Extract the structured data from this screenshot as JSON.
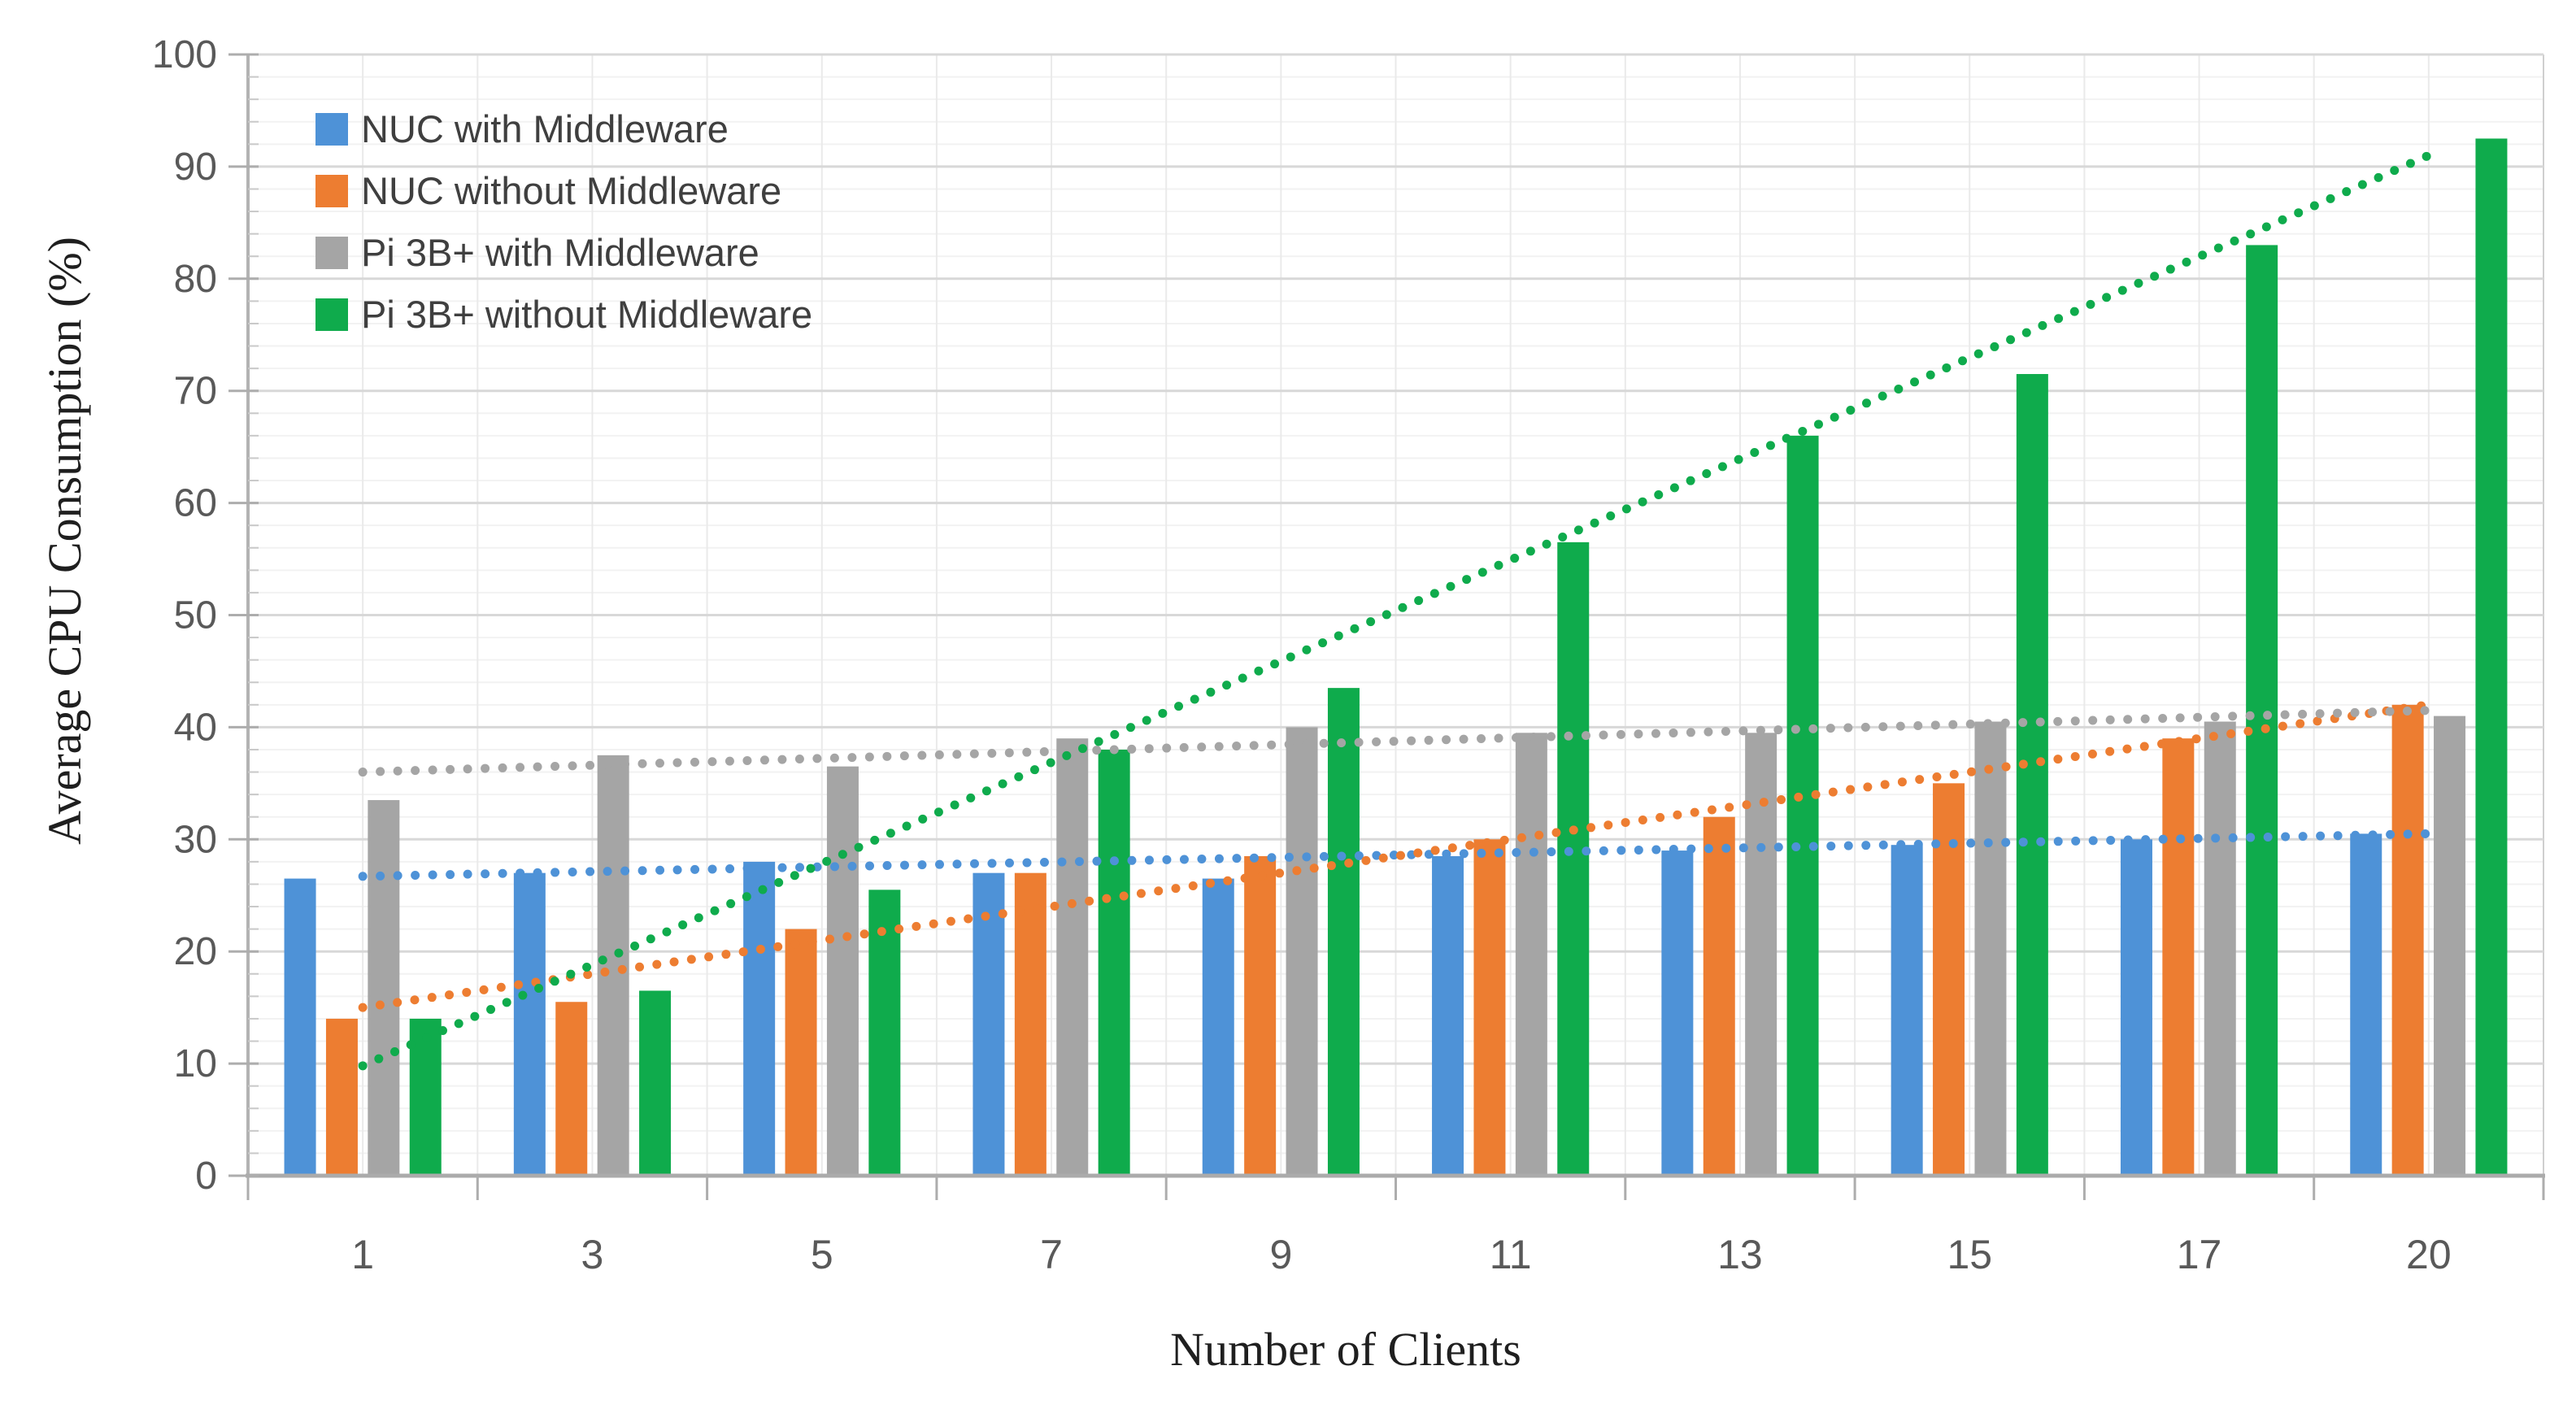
{
  "figure": {
    "y_axis_title": "Average CPU Consumption (%)",
    "x_axis_title": "Number of Clients"
  },
  "chart_data": {
    "type": "bar",
    "title": "",
    "xlabel": "Number of Clients",
    "ylabel": "Average CPU Consumption (%)",
    "categories": [
      "1",
      "3",
      "5",
      "7",
      "9",
      "11",
      "13",
      "15",
      "17",
      "20"
    ],
    "ylim": [
      0,
      100
    ],
    "y_major_step": 10,
    "y_minor_step": 2,
    "grid": true,
    "legend_position": "top-left-inside",
    "series": [
      {
        "name": "NUC with Middleware",
        "color": "#4E92D7",
        "values": [
          26.5,
          27,
          28,
          27,
          26.5,
          28.5,
          29,
          29.5,
          30,
          30.5
        ],
        "trendline": {
          "style": "dotted",
          "start": 26.7,
          "end": 30.5
        }
      },
      {
        "name": "NUC without Middleware",
        "color": "#ED7D31",
        "values": [
          14,
          15.5,
          22,
          27,
          28.5,
          30,
          32,
          35,
          39,
          42
        ],
        "trendline": {
          "style": "dotted",
          "start": 15.0,
          "end": 42.0
        }
      },
      {
        "name": "Pi 3B+ with Middleware",
        "color": "#A5A5A5",
        "values": [
          33.5,
          37.5,
          36.5,
          39,
          40,
          39.5,
          39.5,
          40.5,
          40.5,
          41
        ],
        "trendline": {
          "style": "dotted",
          "start": 36.0,
          "end": 41.5
        }
      },
      {
        "name": "Pi 3B+ without Middleware",
        "color": "#0FAB4C",
        "values": [
          14,
          16.5,
          25.5,
          38,
          43.5,
          56.5,
          66,
          71.5,
          83,
          92.5
        ],
        "trendline": {
          "style": "dotted",
          "start": 9.8,
          "end": 91.0
        }
      }
    ]
  }
}
